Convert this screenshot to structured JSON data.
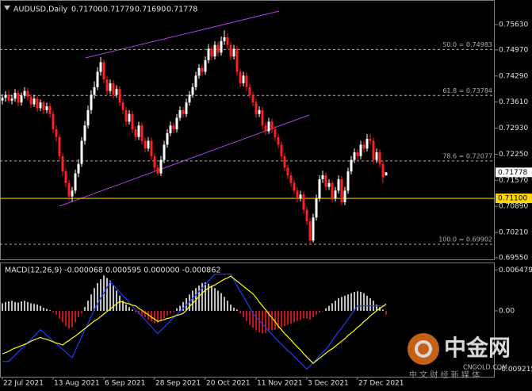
{
  "chart_data": [
    {
      "type": "candlestick",
      "title": "AUDUSD,Daily",
      "ohlc_labels": [
        "0.71700",
        "0.71779",
        "0.71690",
        "0.71778"
      ],
      "up_color": "#ffffff",
      "down_color": "#ff2020",
      "xlim": [
        -0.75,
        155.25
      ],
      "ylim": [
        0.6953,
        0.7621
      ],
      "yticks": [
        {
          "value": 0.7563,
          "label": "0.75630"
        },
        {
          "value": 0.7497,
          "label": "0.74970"
        },
        {
          "value": 0.7429,
          "label": "0.74290"
        },
        {
          "value": 0.7361,
          "label": "0.73610"
        },
        {
          "value": 0.7293,
          "label": "0.72930"
        },
        {
          "value": 0.7225,
          "label": "0.72250"
        },
        {
          "value": 0.7157,
          "label": "0.71570"
        },
        {
          "value": 0.7089,
          "label": "0.70890"
        },
        {
          "value": 0.7021,
          "label": "0.70210"
        },
        {
          "value": 0.6955,
          "label": "0.69550"
        }
      ],
      "xticks": [
        {
          "value": 0,
          "label": "22 Jul 2021"
        },
        {
          "value": 16,
          "label": "13 Aug 2021"
        },
        {
          "value": 32,
          "label": "6 Sep 2021"
        },
        {
          "value": 48,
          "label": "28 Sep 2021"
        },
        {
          "value": 64,
          "label": "20 Oct 2021"
        },
        {
          "value": 80,
          "label": "11 Nov 2021"
        },
        {
          "value": 96,
          "label": "3 Dec 2021"
        },
        {
          "value": 112,
          "label": "27 Dec 2021"
        }
      ],
      "levels": [
        {
          "value": 0.74983,
          "label": "50.0 = 0.74983"
        },
        {
          "value": 0.73784,
          "label": "61.8 = 0.73784"
        },
        {
          "value": 0.72077,
          "label": "78.6 = 0.72077"
        },
        {
          "value": 0.69902,
          "label": "100.0 = 0.69902"
        }
      ],
      "level_color": "#b0b0b0",
      "hline": {
        "value": 0.711,
        "label": "0.71100",
        "color": "#ffd700"
      },
      "current_price": {
        "value": 0.71778,
        "label": "0.71778"
      },
      "candles": [
        [
          0.7365,
          0.7382,
          0.7355,
          0.7372
        ],
        [
          0.7372,
          0.739,
          0.7362,
          0.738
        ],
        [
          0.738,
          0.7392,
          0.7358,
          0.7365
        ],
        [
          0.7365,
          0.738,
          0.7355,
          0.737
        ],
        [
          0.737,
          0.7395,
          0.7362,
          0.7385
        ],
        [
          0.7385,
          0.7392,
          0.735,
          0.736
        ],
        [
          0.736,
          0.7386,
          0.7352,
          0.7378
        ],
        [
          0.7378,
          0.74,
          0.737,
          0.739
        ],
        [
          0.739,
          0.7398,
          0.7365,
          0.7375
        ],
        [
          0.7375,
          0.7382,
          0.7345,
          0.7355
        ],
        [
          0.7355,
          0.738,
          0.7348,
          0.737
        ],
        [
          0.737,
          0.7378,
          0.7335,
          0.7345
        ],
        [
          0.7345,
          0.7368,
          0.7338,
          0.736
        ],
        [
          0.736,
          0.7365,
          0.733,
          0.734
        ],
        [
          0.734,
          0.736,
          0.7332,
          0.735
        ],
        [
          0.735,
          0.7358,
          0.732,
          0.733
        ],
        [
          0.733,
          0.7338,
          0.728,
          0.729
        ],
        [
          0.729,
          0.73,
          0.7258,
          0.727
        ],
        [
          0.727,
          0.7278,
          0.721,
          0.722
        ],
        [
          0.722,
          0.7228,
          0.7168,
          0.718
        ],
        [
          0.718,
          0.7188,
          0.7138,
          0.715
        ],
        [
          0.715,
          0.7158,
          0.7105,
          0.7115
        ],
        [
          0.7115,
          0.714,
          0.7102,
          0.713
        ],
        [
          0.713,
          0.7185,
          0.7122,
          0.7175
        ],
        [
          0.7175,
          0.7212,
          0.7165,
          0.72
        ],
        [
          0.72,
          0.727,
          0.7192,
          0.726
        ],
        [
          0.726,
          0.7312,
          0.725,
          0.73
        ],
        [
          0.73,
          0.7352,
          0.7292,
          0.734
        ],
        [
          0.734,
          0.7392,
          0.733,
          0.738
        ],
        [
          0.738,
          0.7415,
          0.737,
          0.74
        ],
        [
          0.74,
          0.7452,
          0.7392,
          0.744
        ],
        [
          0.744,
          0.7478,
          0.743,
          0.7465
        ],
        [
          0.7465,
          0.7472,
          0.741,
          0.742
        ],
        [
          0.742,
          0.7428,
          0.738,
          0.739
        ],
        [
          0.739,
          0.742,
          0.7382,
          0.741
        ],
        [
          0.741,
          0.7418,
          0.737,
          0.738
        ],
        [
          0.738,
          0.7405,
          0.7372,
          0.7395
        ],
        [
          0.7395,
          0.7402,
          0.735,
          0.736
        ],
        [
          0.736,
          0.7368,
          0.733,
          0.734
        ],
        [
          0.734,
          0.7348,
          0.73,
          0.731
        ],
        [
          0.731,
          0.734,
          0.7302,
          0.733
        ],
        [
          0.733,
          0.7338,
          0.728,
          0.729
        ],
        [
          0.729,
          0.7298,
          0.726,
          0.727
        ],
        [
          0.727,
          0.731,
          0.7262,
          0.73
        ],
        [
          0.73,
          0.7308,
          0.725,
          0.726
        ],
        [
          0.726,
          0.7268,
          0.723,
          0.724
        ],
        [
          0.724,
          0.727,
          0.7232,
          0.726
        ],
        [
          0.726,
          0.7268,
          0.721,
          0.722
        ],
        [
          0.722,
          0.7228,
          0.718,
          0.719
        ],
        [
          0.719,
          0.7198,
          0.717,
          0.7175
        ],
        [
          0.7175,
          0.722,
          0.7168,
          0.721
        ],
        [
          0.721,
          0.726,
          0.7202,
          0.725
        ],
        [
          0.725,
          0.729,
          0.7242,
          0.728
        ],
        [
          0.728,
          0.731,
          0.7272,
          0.73
        ],
        [
          0.73,
          0.7308,
          0.728,
          0.729
        ],
        [
          0.729,
          0.733,
          0.7282,
          0.732
        ],
        [
          0.732,
          0.735,
          0.7312,
          0.734
        ],
        [
          0.734,
          0.7348,
          0.732,
          0.733
        ],
        [
          0.733,
          0.737,
          0.7322,
          0.736
        ],
        [
          0.736,
          0.739,
          0.7352,
          0.738
        ],
        [
          0.738,
          0.741,
          0.7372,
          0.74
        ],
        [
          0.74,
          0.744,
          0.7392,
          0.743
        ],
        [
          0.743,
          0.746,
          0.7422,
          0.745
        ],
        [
          0.745,
          0.7458,
          0.743,
          0.744
        ],
        [
          0.744,
          0.748,
          0.7432,
          0.747
        ],
        [
          0.747,
          0.7512,
          0.7462,
          0.75
        ],
        [
          0.75,
          0.7508,
          0.747,
          0.748
        ],
        [
          0.748,
          0.752,
          0.7472,
          0.751
        ],
        [
          0.751,
          0.7518,
          0.748,
          0.749
        ],
        [
          0.749,
          0.7532,
          0.7482,
          0.752
        ],
        [
          0.752,
          0.7548,
          0.751,
          0.753
        ],
        [
          0.753,
          0.754,
          0.75,
          0.751
        ],
        [
          0.751,
          0.7518,
          0.747,
          0.748
        ],
        [
          0.748,
          0.751,
          0.7472,
          0.75
        ],
        [
          0.75,
          0.7508,
          0.743,
          0.744
        ],
        [
          0.744,
          0.7448,
          0.74,
          0.741
        ],
        [
          0.741,
          0.744,
          0.7402,
          0.743
        ],
        [
          0.743,
          0.7438,
          0.739,
          0.74
        ],
        [
          0.74,
          0.7408,
          0.737,
          0.738
        ],
        [
          0.738,
          0.7388,
          0.735,
          0.736
        ],
        [
          0.736,
          0.7368,
          0.732,
          0.733
        ],
        [
          0.733,
          0.735,
          0.7322,
          0.734
        ],
        [
          0.734,
          0.7348,
          0.729,
          0.73
        ],
        [
          0.73,
          0.7308,
          0.7275,
          0.7285
        ],
        [
          0.7285,
          0.732,
          0.7278,
          0.731
        ],
        [
          0.731,
          0.7318,
          0.728,
          0.729
        ],
        [
          0.729,
          0.7298,
          0.726,
          0.727
        ],
        [
          0.727,
          0.7278,
          0.724,
          0.725
        ],
        [
          0.725,
          0.7258,
          0.721,
          0.722
        ],
        [
          0.722,
          0.7228,
          0.718,
          0.719
        ],
        [
          0.719,
          0.7198,
          0.716,
          0.717
        ],
        [
          0.717,
          0.7178,
          0.714,
          0.715
        ],
        [
          0.715,
          0.7158,
          0.712,
          0.713
        ],
        [
          0.713,
          0.7138,
          0.71,
          0.711
        ],
        [
          0.711,
          0.713,
          0.7102,
          0.712
        ],
        [
          0.712,
          0.7128,
          0.707,
          0.708
        ],
        [
          0.708,
          0.7088,
          0.704,
          0.705
        ],
        [
          0.705,
          0.7058,
          0.699,
          0.7
        ],
        [
          0.7,
          0.707,
          0.6995,
          0.706
        ],
        [
          0.706,
          0.712,
          0.7052,
          0.711
        ],
        [
          0.711,
          0.717,
          0.7102,
          0.716
        ],
        [
          0.716,
          0.7182,
          0.715,
          0.717
        ],
        [
          0.717,
          0.7178,
          0.713,
          0.714
        ],
        [
          0.714,
          0.716,
          0.7132,
          0.715
        ],
        [
          0.715,
          0.7158,
          0.71,
          0.711
        ],
        [
          0.711,
          0.714,
          0.7102,
          0.713
        ],
        [
          0.713,
          0.717,
          0.7122,
          0.716
        ],
        [
          0.716,
          0.7168,
          0.7092,
          0.71
        ],
        [
          0.71,
          0.714,
          0.7092,
          0.713
        ],
        [
          0.713,
          0.719,
          0.7122,
          0.718
        ],
        [
          0.718,
          0.722,
          0.7172,
          0.721
        ],
        [
          0.721,
          0.724,
          0.7202,
          0.723
        ],
        [
          0.723,
          0.7238,
          0.721,
          0.722
        ],
        [
          0.722,
          0.726,
          0.7212,
          0.725
        ],
        [
          0.725,
          0.7258,
          0.723,
          0.724
        ],
        [
          0.724,
          0.7278,
          0.7232,
          0.7265
        ],
        [
          0.7265,
          0.7278,
          0.725,
          0.726
        ],
        [
          0.726,
          0.7268,
          0.72,
          0.721
        ],
        [
          0.721,
          0.724,
          0.7202,
          0.723
        ],
        [
          0.723,
          0.7238,
          0.719,
          0.72
        ],
        [
          0.72,
          0.7208,
          0.715,
          0.7165
        ],
        [
          0.717,
          0.71779,
          0.7169,
          0.71778
        ]
      ]
    },
    {
      "type": "macd",
      "title": "MACD(12,26,9) -0.000068 0.000595 0.000000 -0.000862",
      "xlim": [
        -0.75,
        155.25
      ],
      "ylim": [
        -0.0103,
        0.0074
      ],
      "yticks": [
        0.006479,
        {
          "value": 0,
          "label": "0.00"
        },
        -0.009215
      ],
      "hist_up_color": "#ffffff",
      "hist_down_color": "#ff2020",
      "main_color": "#1e3cff",
      "signal_color": "#ffff00",
      "histogram": [
        0.0012,
        0.0014,
        0.0015,
        0.0016,
        0.0014,
        0.0013,
        0.0015,
        0.0016,
        0.0014,
        0.0012,
        0.0011,
        0.001,
        0.0008,
        0.0005,
        0.0003,
        0.0001,
        -0.0002,
        -0.0006,
        -0.0012,
        -0.0018,
        -0.0024,
        -0.0028,
        -0.0026,
        -0.0018,
        -0.001,
        -0.0004,
        0.0006,
        0.0016,
        0.0026,
        0.0036,
        0.0044,
        0.005,
        0.0056,
        0.0052,
        0.0048,
        0.004,
        0.0032,
        0.0024,
        0.0016,
        0.001,
        0.0006,
        0.0002,
        -0.0002,
        -0.0005,
        -0.0008,
        -0.001,
        -0.0014,
        -0.0017,
        -0.002,
        -0.0019,
        -0.0016,
        -0.0012,
        -0.0008,
        -0.0004,
        -0.0002,
        0.0004,
        0.0008,
        0.0014,
        0.002,
        0.0026,
        0.0032,
        0.0036,
        0.004,
        0.0044,
        0.0045,
        0.0043,
        0.004,
        0.0036,
        0.0032,
        0.0028,
        0.0022,
        0.0016,
        0.001,
        0.0005,
        0.0002,
        -0.0004,
        -0.001,
        -0.0016,
        -0.0022,
        -0.0027,
        -0.0031,
        -0.0034,
        -0.0036,
        -0.0035,
        -0.0033,
        -0.0031,
        -0.003,
        -0.0028,
        -0.0026,
        -0.0024,
        -0.0022,
        -0.002,
        -0.0018,
        -0.0016,
        -0.0014,
        -0.0012,
        -0.0012,
        -0.0014,
        -0.001,
        -0.0006,
        -0.0003,
        -0.0001,
        0.0004,
        0.0008,
        0.0012,
        0.0016,
        0.002,
        0.0022,
        0.0024,
        0.0026,
        0.0028,
        0.003,
        0.0031,
        0.003,
        0.0028,
        0.0024,
        0.002,
        0.0016,
        0.001,
        0.0006,
        0.0002,
        -0.0006
      ],
      "signal": [
        -0.0068,
        -0.0066,
        -0.0064,
        -0.0061,
        -0.0059,
        -0.0057,
        -0.0055,
        -0.0053,
        -0.0051,
        -0.0048,
        -0.0046,
        -0.0044,
        -0.0042,
        -0.0044,
        -0.0045,
        -0.0047,
        -0.0049,
        -0.0051,
        -0.0052,
        -0.0054,
        -0.005,
        -0.0047,
        -0.0043,
        -0.004,
        -0.0036,
        -0.0032,
        -0.0028,
        -0.0024,
        -0.002,
        -0.0016,
        -0.0013,
        -0.0009,
        -0.0005,
        -0.0001,
        0.0003,
        0.0007,
        0.0011,
        0.0015,
        0.0014,
        0.0012,
        0.0011,
        0.0009,
        0.0008,
        0.0004,
        0.0001,
        -0.0003,
        -0.0006,
        -0.001,
        -0.0013,
        -0.0017,
        -0.0015,
        -0.0014,
        -0.0012,
        -0.0011,
        -0.0009,
        -0.0007,
        -0.0006,
        -0.0004,
        0.0001,
        0.0007,
        0.0012,
        0.0017,
        0.0023,
        0.0028,
        0.0033,
        0.0036,
        0.0039,
        0.0041,
        0.0044,
        0.0047,
        0.005,
        0.0052,
        0.0055,
        0.0051,
        0.0047,
        0.0043,
        0.0039,
        0.0035,
        0.0031,
        0.0027,
        0.0021,
        0.0014,
        0.0008,
        0.0002,
        -0.0005,
        -0.0011,
        -0.0017,
        -0.0024,
        -0.003,
        -0.0036,
        -0.0041,
        -0.0046,
        -0.0052,
        -0.0057,
        -0.0062,
        -0.0068,
        -0.0073,
        -0.0078,
        -0.0083,
        -0.0079,
        -0.0075,
        -0.0071,
        -0.0067,
        -0.0063,
        -0.006,
        -0.0056,
        -0.0052,
        -0.0048,
        -0.0044,
        -0.0039,
        -0.0035,
        -0.0031,
        -0.0026,
        -0.0022,
        -0.0017,
        -0.0013,
        -0.0008,
        -0.0004,
        0.0,
        0.0004,
        0.0007,
        0.0011
      ],
      "main": [
        -0.008,
        -0.008,
        -0.008,
        -0.0075,
        -0.007,
        -0.0065,
        -0.006,
        -0.0055,
        -0.005,
        -0.0045,
        -0.004,
        -0.0035,
        -0.003,
        -0.0034,
        -0.0039,
        -0.0043,
        -0.0048,
        -0.0052,
        -0.0056,
        -0.0061,
        -0.0065,
        -0.007,
        -0.0074,
        -0.0063,
        -0.0052,
        -0.0041,
        -0.003,
        -0.002,
        -0.0009,
        0.0002,
        0.0011,
        0.002,
        0.0028,
        0.0037,
        0.0046,
        0.0041,
        0.0035,
        0.003,
        0.0024,
        0.0019,
        0.0013,
        0.0008,
        0.0002,
        -0.0003,
        -0.0009,
        -0.0014,
        -0.002,
        -0.0025,
        -0.0031,
        -0.0036,
        -0.0031,
        -0.0026,
        -0.0021,
        -0.0016,
        -0.0011,
        -0.0006,
        -0.0001,
        0.0004,
        0.0009,
        0.0014,
        0.002,
        0.0025,
        0.0031,
        0.0036,
        0.0042,
        0.0047,
        0.0053,
        0.0058,
        0.0058,
        0.0058,
        0.0058,
        0.0058,
        0.0058,
        0.0049,
        0.004,
        0.0031,
        0.0023,
        0.0014,
        0.0005,
        -0.0004,
        -0.001,
        -0.0015,
        -0.0021,
        -0.0026,
        -0.0032,
        -0.0037,
        -0.0043,
        -0.0048,
        -0.0053,
        -0.0058,
        -0.0063,
        -0.0067,
        -0.0072,
        -0.0077,
        -0.0082,
        -0.0087,
        -0.0092,
        -0.0087,
        -0.0082,
        -0.0077,
        -0.0071,
        -0.0066,
        -0.0061,
        -0.0054,
        -0.0047,
        -0.004,
        -0.0033,
        -0.0027,
        -0.002,
        -0.0013,
        -0.0006,
        0.0001,
        0.0008,
        0.0008,
        0.0008,
        0.0008,
        0.0008,
        0.0008,
        0.0008,
        0.0008,
        0.0008,
        0.0008
      ]
    }
  ],
  "watermark": {
    "brand": "中金网",
    "site": "CNGOLD.COM",
    "slogan": "中 文 财 经 新 媒 体"
  }
}
